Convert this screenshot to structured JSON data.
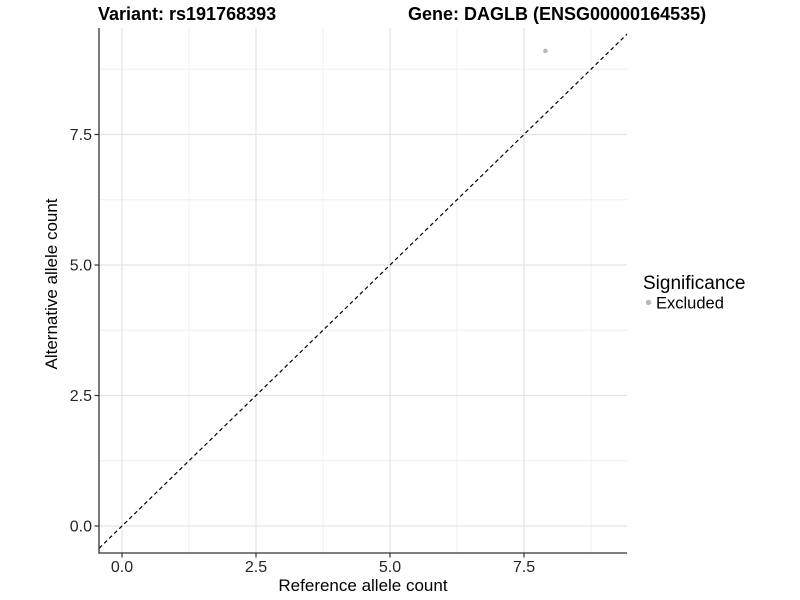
{
  "figure": {
    "title_variant": "Variant: rs191768393",
    "title_gene": "Gene: DAGLB (ENSG00000164535)"
  },
  "axes": {
    "x": {
      "label": "Reference allele count",
      "tick_labels": [
        "0.0",
        "2.5",
        "5.0",
        "7.5"
      ]
    },
    "y": {
      "label": "Alternative allele count",
      "tick_labels": [
        "0.0",
        "2.5",
        "5.0",
        "7.5"
      ]
    }
  },
  "legend": {
    "title": "Significance",
    "items": [
      {
        "label": "Excluded",
        "color": "#b8b8b8"
      }
    ]
  },
  "colors": {
    "point": "#b8b8b8",
    "grid_major": "#e3e3e3",
    "grid_minor": "#efefef",
    "axis_line": "#333333",
    "reference_line": "#000000",
    "background": "#ffffff"
  },
  "chart_data": {
    "type": "scatter",
    "title": "Variant: rs191768393 | Gene: DAGLB (ENSG00000164535)",
    "xlabel": "Reference allele count",
    "ylabel": "Alternative allele count",
    "xlim": [
      -0.43,
      9.42
    ],
    "ylim": [
      -0.52,
      9.54
    ],
    "x_ticks": [
      0,
      2.5,
      5,
      7.5
    ],
    "y_ticks": [
      0,
      2.5,
      5,
      7.5
    ],
    "grid": true,
    "grid_minor": true,
    "legend_position": "right",
    "series": [
      {
        "name": "Excluded",
        "color": "#b8b8b8",
        "marker": "circle",
        "points": [
          {
            "x": 7.9,
            "y": 9.1
          }
        ]
      }
    ],
    "reference_line": {
      "kind": "identity",
      "equation": "y = x",
      "style": "dashed",
      "color": "#000000"
    }
  }
}
